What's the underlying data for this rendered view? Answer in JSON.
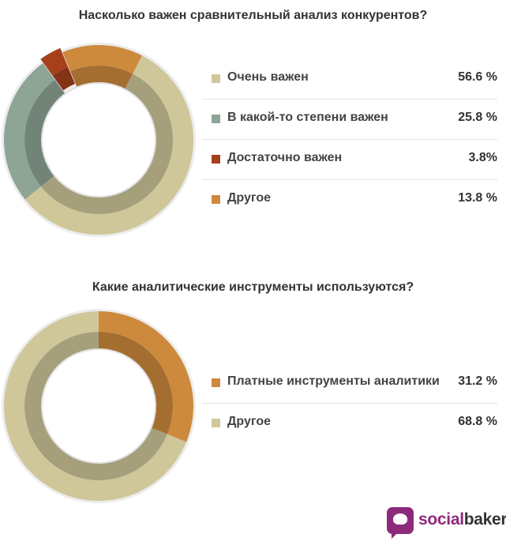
{
  "chart_data": [
    {
      "type": "pie",
      "title": "Насколько важен сравнительный анализ конкурентов?",
      "categories": [
        "Очень важен",
        "В какой-то степени важен",
        "Достаточно важен",
        "Другое"
      ],
      "values": [
        56.6,
        25.8,
        3.8,
        13.8
      ],
      "value_labels": [
        "56.6 %",
        "25.8 %",
        "3.8%",
        "13.8 %"
      ],
      "colors": [
        "#cfc79a",
        "#8ea596",
        "#a6401c",
        "#cd8a3d"
      ],
      "legend": "right"
    },
    {
      "type": "pie",
      "title": "Какие аналитические инструменты используются?",
      "categories": [
        "Платные инструменты аналитики",
        "Другое"
      ],
      "values": [
        31.2,
        68.8
      ],
      "value_labels": [
        "31.2 %",
        "68.8 %"
      ],
      "colors": [
        "#cd8a3d",
        "#cfc79a"
      ],
      "legend": "right"
    }
  ],
  "logo": {
    "part1": "social",
    "part2": "bakers"
  }
}
